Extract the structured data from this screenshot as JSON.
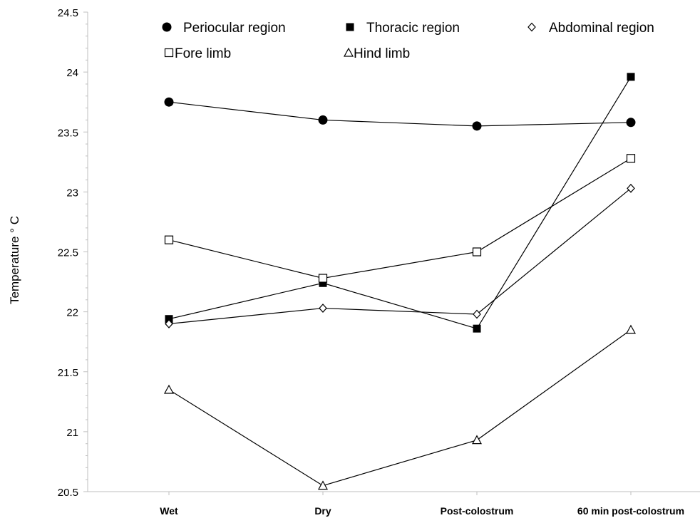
{
  "chart_data": {
    "type": "line",
    "title": "",
    "xlabel": "",
    "ylabel": "Temperature ° C",
    "categories": [
      "Wet",
      "Dry",
      "Post-colostrum",
      "60 min post-colostrum"
    ],
    "ylim": [
      20.5,
      24.5
    ],
    "yticks": [
      "20.5",
      "21",
      "21.5",
      "22",
      "22.5",
      "23",
      "23.5",
      "24",
      "24.5"
    ],
    "grid": false,
    "legend_position": "top",
    "series": [
      {
        "name": "Periocular region",
        "marker": "filled-circle",
        "values": [
          23.75,
          23.6,
          23.55,
          23.58
        ]
      },
      {
        "name": "Thoracic region",
        "marker": "filled-square",
        "values": [
          21.94,
          22.24,
          21.86,
          23.96
        ]
      },
      {
        "name": "Abdominal region",
        "marker": "open-diamond",
        "values": [
          21.9,
          22.03,
          21.98,
          23.03
        ]
      },
      {
        "name": "Fore limb",
        "marker": "open-square",
        "values": [
          22.6,
          22.28,
          22.5,
          23.28
        ]
      },
      {
        "name": "Hind limb",
        "marker": "open-triangle",
        "values": [
          21.35,
          20.55,
          20.93,
          21.85
        ]
      }
    ],
    "colors": {
      "line": "#000000",
      "marker_fill": "#000000",
      "open_fill": "#ffffff"
    }
  }
}
